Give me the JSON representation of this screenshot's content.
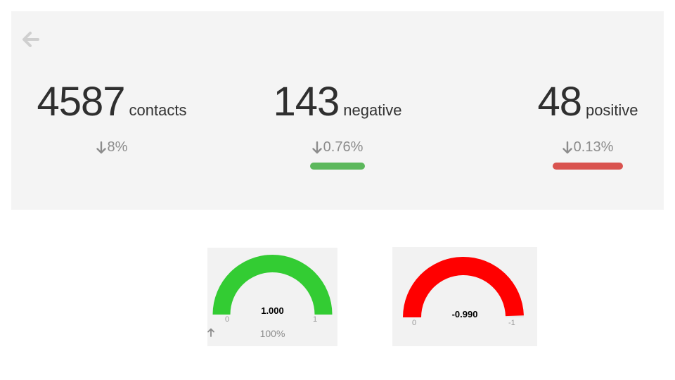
{
  "header": {
    "back_icon": "arrow-left-icon"
  },
  "stats": {
    "contacts": {
      "number": "4587",
      "unit": "contacts",
      "change": "8%",
      "direction": "down"
    },
    "negative": {
      "number": "143",
      "unit": "negative",
      "change": "0.76%",
      "direction": "down",
      "bar_color": "#5cb85c"
    },
    "positive": {
      "number": "48",
      "unit": "positive",
      "change": "0.13%",
      "direction": "down",
      "bar_color": "#d9534f"
    }
  },
  "gauges": [
    {
      "value": "1.000",
      "min_label": "0",
      "max_label": "1",
      "fill_fraction": 1.0,
      "color": "#33cc33",
      "change": "100%",
      "direction": "up"
    },
    {
      "value": "-0.990",
      "min_label": "0",
      "max_label": "-1",
      "fill_fraction": 0.99,
      "color": "#ff0000"
    }
  ],
  "colors": {
    "panel_bg": "#f4f4f4",
    "muted_text": "#8c8c8c",
    "green": "#5cb85c",
    "red": "#d9534f"
  }
}
